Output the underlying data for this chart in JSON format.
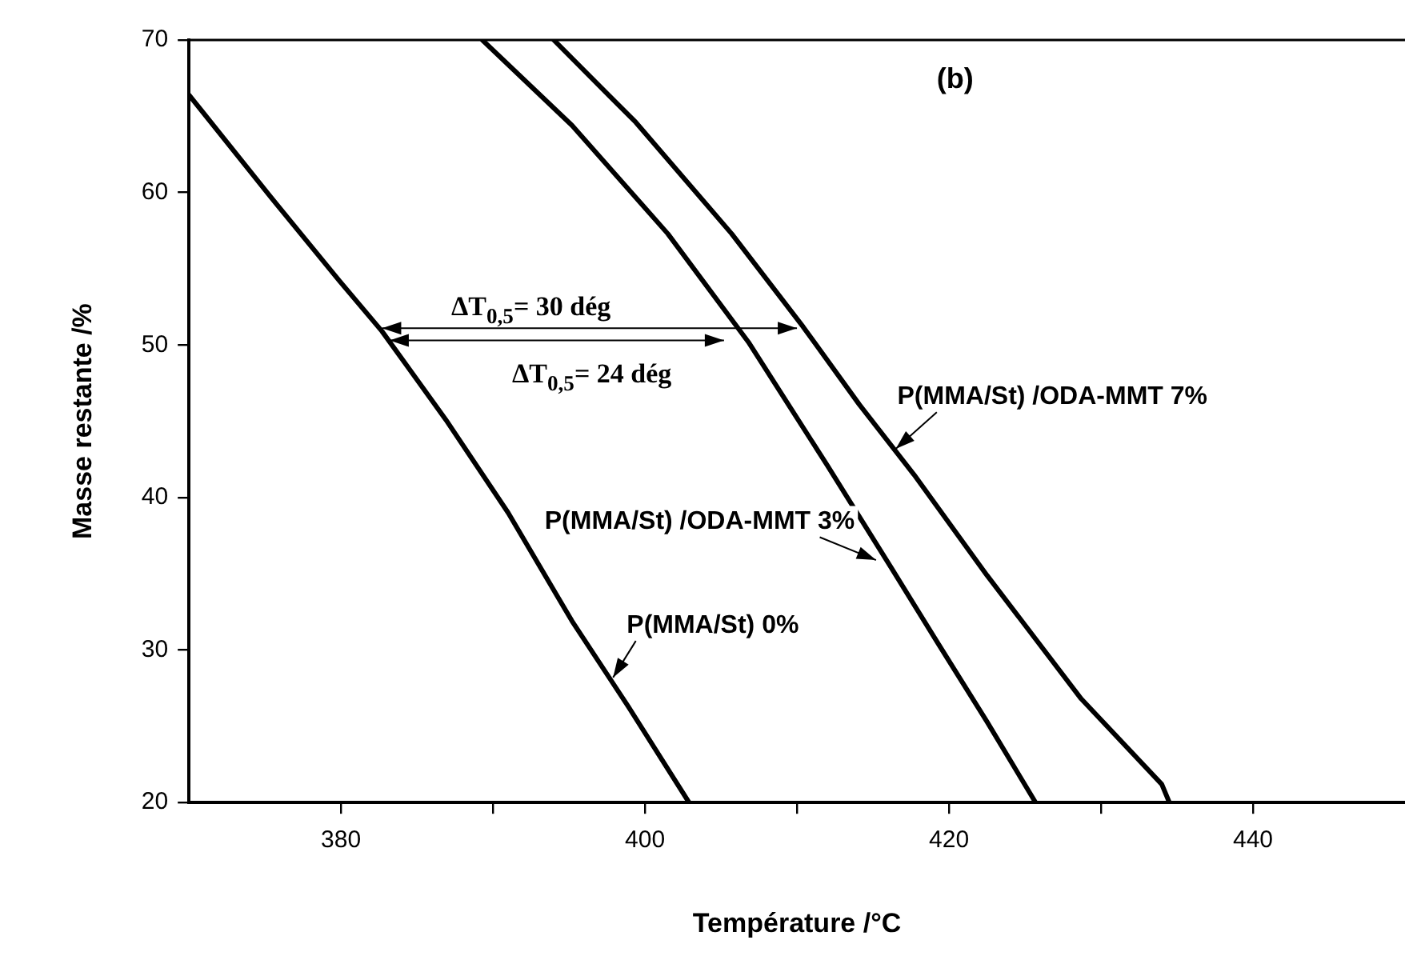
{
  "chart_data": {
    "type": "line",
    "xlabel": "Température /°C",
    "ylabel": "Masse restante /%",
    "xlim": [
      370,
      450
    ],
    "xticks": [
      380,
      {
        "value": 390,
        "label": null
      },
      400,
      {
        "value": 410,
        "label": null
      },
      420,
      {
        "value": 430,
        "label": null
      },
      440
    ],
    "ylim": [
      20,
      70
    ],
    "yticks": [
      20,
      30,
      40,
      50,
      60,
      70
    ],
    "grid": false,
    "legend": false,
    "marker": "none",
    "line_style": "solid",
    "annotations": [
      "(b)",
      "ΔT$_{0,5}$= 30 dég",
      "ΔT$_{0,5}$= 24 dég"
    ],
    "series": [
      {
        "name": "P(MMA/St) 0%",
        "color": "#000000",
        "x": [
          370,
          375.3,
          379.9,
          382.7,
          386.9,
          391.0,
          395.2,
          398.9,
          402.9
        ],
        "values": [
          66.4,
          59.8,
          54.2,
          50.9,
          45.1,
          39.0,
          31.9,
          26.3,
          20
        ]
      },
      {
        "name": "P(MMA/St) /ODA-MMT 3%",
        "color": "#000000",
        "x": [
          389.3,
          395.2,
          401.5,
          406.8,
          412.0,
          416.2,
          419.3,
          422.5,
          425.7
        ],
        "values": [
          70,
          64.4,
          57.3,
          50.2,
          42.1,
          35.4,
          30.4,
          25.3,
          20
        ]
      },
      {
        "name": "P(MMA/St) /ODA-MMT 7%",
        "color": "#000000",
        "x": [
          394.0,
          399.4,
          405.7,
          410.4,
          414.1,
          417.7,
          422.5,
          428.7,
          434.0,
          434.5
        ],
        "values": [
          70,
          64.6,
          57.3,
          51.2,
          46.1,
          41.5,
          34.9,
          26.8,
          21.2,
          20
        ]
      }
    ]
  }
}
